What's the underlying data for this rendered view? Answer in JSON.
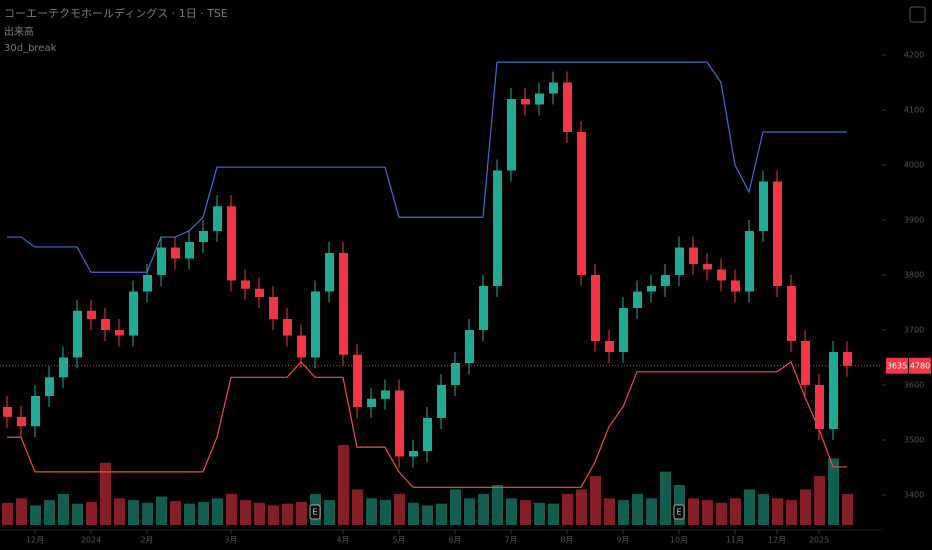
{
  "chart_data": {
    "type": "candlestick",
    "title": "コーエーテクモホールディングス · 1日 · TSE",
    "indicators": [
      "出来高",
      "30d_break"
    ],
    "open": [
      3560,
      3542,
      3525,
      3580,
      3614,
      3650,
      3735,
      3720,
      3700,
      3690,
      3770,
      3800,
      3850,
      3830,
      3860,
      3880,
      3925,
      3790,
      3775,
      3760,
      3720,
      3690,
      3650,
      3770,
      3840,
      3655,
      3560,
      3575,
      3590,
      3470,
      3480,
      3540,
      3600,
      3640,
      3700,
      3780,
      3990,
      4120,
      4110,
      4130,
      4150,
      4060,
      3800,
      3680,
      3660,
      3740,
      3770,
      3780,
      3800,
      3850,
      3820,
      3810,
      3790,
      3770,
      3880,
      3970,
      3780,
      3680,
      3600,
      3520,
      3660
    ],
    "high": [
      3580,
      3562,
      3600,
      3634,
      3670,
      3755,
      3755,
      3740,
      3720,
      3790,
      3820,
      3870,
      3870,
      3880,
      3900,
      3945,
      3945,
      3810,
      3795,
      3780,
      3740,
      3710,
      3790,
      3860,
      3860,
      3675,
      3595,
      3610,
      3610,
      3500,
      3560,
      3620,
      3660,
      3720,
      3800,
      4010,
      4140,
      4140,
      4150,
      4170,
      4170,
      4080,
      3820,
      3700,
      3760,
      3790,
      3800,
      3820,
      3870,
      3870,
      3840,
      3830,
      3810,
      3900,
      3990,
      3990,
      3800,
      3700,
      3620,
      3680,
      3680
    ],
    "low": [
      3522,
      3505,
      3505,
      3560,
      3594,
      3630,
      3700,
      3680,
      3670,
      3670,
      3750,
      3780,
      3810,
      3810,
      3840,
      3860,
      3770,
      3755,
      3740,
      3700,
      3670,
      3630,
      3630,
      3750,
      3635,
      3540,
      3540,
      3555,
      3450,
      3450,
      3460,
      3520,
      3580,
      3620,
      3680,
      3760,
      3970,
      4090,
      4090,
      4110,
      4040,
      3780,
      3660,
      3640,
      3640,
      3720,
      3750,
      3760,
      3780,
      3800,
      3790,
      3770,
      3750,
      3750,
      3860,
      3760,
      3660,
      3580,
      3500,
      3500,
      3615
    ],
    "close": [
      3542,
      3525,
      3580,
      3614,
      3650,
      3735,
      3720,
      3700,
      3690,
      3770,
      3800,
      3850,
      3830,
      3860,
      3880,
      3925,
      3790,
      3775,
      3760,
      3720,
      3690,
      3650,
      3770,
      3840,
      3655,
      3560,
      3575,
      3590,
      3470,
      3480,
      3540,
      3600,
      3640,
      3700,
      3780,
      3990,
      4120,
      4110,
      4130,
      4150,
      4060,
      3800,
      3680,
      3660,
      3740,
      3770,
      3780,
      3800,
      3850,
      3820,
      3810,
      3790,
      3770,
      3880,
      3970,
      3780,
      3680,
      3600,
      3520,
      3660,
      3635
    ],
    "volume": [
      25,
      30,
      22,
      28,
      35,
      24,
      26,
      70,
      30,
      28,
      25,
      32,
      27,
      24,
      26,
      30,
      35,
      28,
      25,
      22,
      24,
      26,
      35,
      28,
      90,
      40,
      30,
      28,
      35,
      25,
      22,
      24,
      40,
      30,
      35,
      45,
      30,
      28,
      25,
      24,
      35,
      40,
      55,
      30,
      28,
      35,
      30,
      60,
      45,
      30,
      28,
      25,
      30,
      40,
      35,
      30,
      28,
      40,
      55,
      75,
      35
    ],
    "upper_band": [
      3869,
      3869,
      3851,
      3851,
      3851,
      3851,
      3805,
      3805,
      3805,
      3805,
      3805,
      3869,
      3869,
      3880,
      3905,
      3996,
      3996,
      3996,
      3996,
      3996,
      3996,
      3996,
      3996,
      3996,
      3996,
      3996,
      3996,
      3996,
      3905,
      3905,
      3905,
      3905,
      3905,
      3905,
      3905,
      4187,
      4187,
      4187,
      4187,
      4187,
      4187,
      4187,
      4187,
      4187,
      4187,
      4187,
      4187,
      4187,
      4187,
      4187,
      4187,
      4150,
      4000,
      3951,
      4060,
      4060,
      4060,
      4060,
      4060,
      4060,
      4060
    ],
    "lower_band": [
      3505,
      3505,
      3442,
      3442,
      3442,
      3442,
      3442,
      3442,
      3442,
      3442,
      3442,
      3442,
      3442,
      3442,
      3442,
      3505,
      3614,
      3614,
      3614,
      3614,
      3614,
      3642,
      3614,
      3614,
      3614,
      3487,
      3487,
      3487,
      3442,
      3414,
      3414,
      3414,
      3414,
      3414,
      3414,
      3414,
      3414,
      3414,
      3414,
      3414,
      3414,
      3414,
      3460,
      3524,
      3560,
      3624,
      3624,
      3624,
      3624,
      3624,
      3624,
      3624,
      3624,
      3624,
      3624,
      3624,
      3642,
      3578,
      3520,
      3451,
      3451
    ],
    "up_color": "#22ab94",
    "down_color": "#f23645",
    "upper_color": "#3f6fd8",
    "lower_color": "#f0504a",
    "ylim": [
      3300,
      4300
    ],
    "yticks": [
      3400,
      3500,
      3600,
      3700,
      3800,
      3900,
      4000,
      4100,
      4200
    ],
    "xticks": [
      {
        "value": 2,
        "label": "12月"
      },
      {
        "value": 6,
        "label": "2024"
      },
      {
        "value": 10,
        "label": "2月"
      },
      {
        "value": 16,
        "label": "3月"
      },
      {
        "value": 24,
        "label": "4月"
      },
      {
        "value": 28,
        "label": "5月"
      },
      {
        "value": 32,
        "label": "6月"
      },
      {
        "value": 36,
        "label": "7月"
      },
      {
        "value": 40,
        "label": "8月"
      },
      {
        "value": 44,
        "label": "9月"
      },
      {
        "value": 48,
        "label": "10月"
      },
      {
        "value": 52,
        "label": "11月"
      },
      {
        "value": 55,
        "label": "12月"
      },
      {
        "value": 58,
        "label": "2025"
      }
    ],
    "events": [
      {
        "index": 22,
        "label": "E"
      },
      {
        "index": 48,
        "label": "E"
      }
    ],
    "side_label": "4780"
  }
}
